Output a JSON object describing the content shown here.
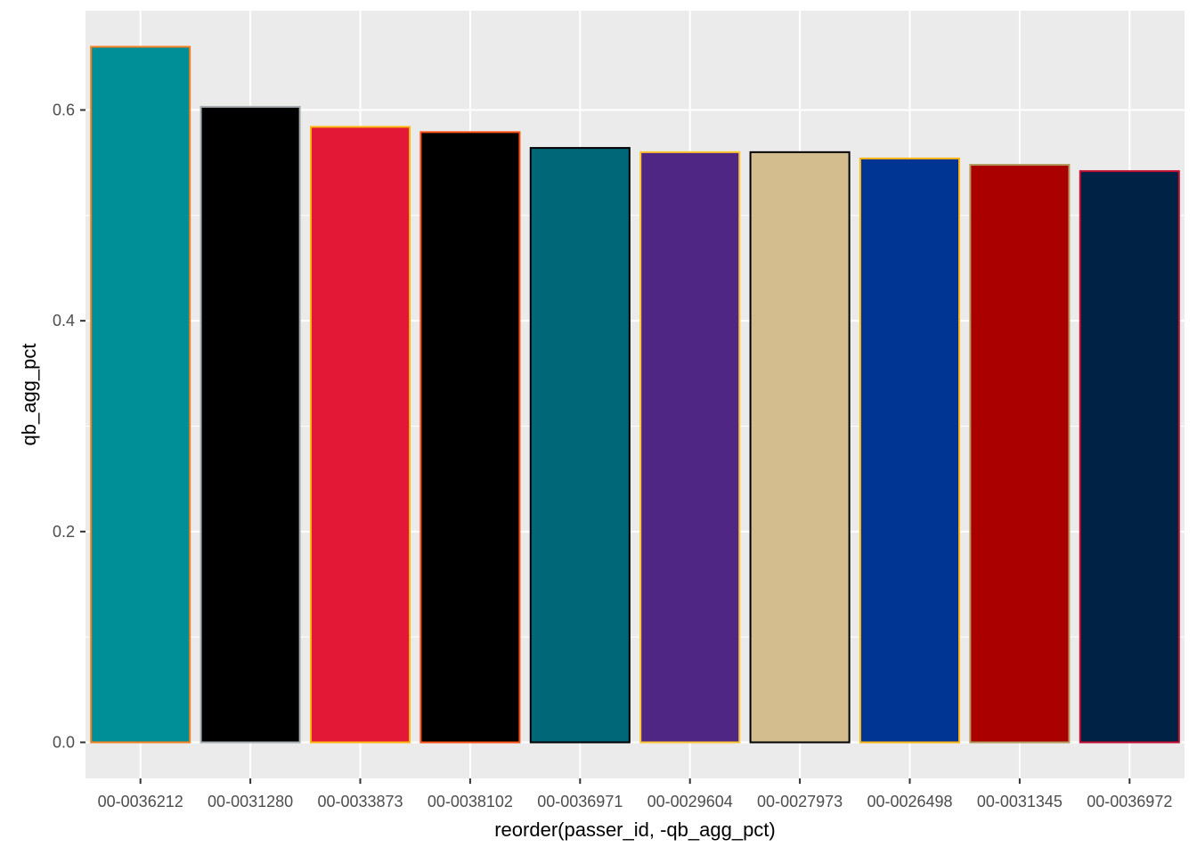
{
  "chart_data": {
    "type": "bar",
    "title": "",
    "xlabel": "reorder(passer_id, -qb_agg_pct)",
    "ylabel": "qb_agg_pct",
    "ylim": [
      -0.03,
      0.69
    ],
    "y_ticks": [
      0.0,
      0.2,
      0.4,
      0.6
    ],
    "y_tick_labels": [
      "0.0",
      "0.2",
      "0.4",
      "0.6"
    ],
    "y_minor_ticks": [
      0.1,
      0.3,
      0.5
    ],
    "grid": true,
    "legend": "none",
    "panel_background": "#ebebeb",
    "grid_color": "#ffffff",
    "categories": [
      "00-0036212",
      "00-0031280",
      "00-0033873",
      "00-0038102",
      "00-0036971",
      "00-0029604",
      "00-0027973",
      "00-0026498",
      "00-0031345",
      "00-0036972"
    ],
    "values": [
      0.66,
      0.603,
      0.584,
      0.579,
      0.564,
      0.56,
      0.56,
      0.554,
      0.548,
      0.542
    ],
    "fill_colors": [
      "#008e97",
      "#000000",
      "#e31837",
      "#000000",
      "#006778",
      "#4f2683",
      "#d3bc8d",
      "#003594",
      "#aa0000",
      "#002244"
    ],
    "outline_colors": [
      "#f58220",
      "#a5acaf",
      "#ffb612",
      "#fb4f14",
      "#000000",
      "#ffc62f",
      "#000000",
      "#ffb612",
      "#b3995d",
      "#c60c30"
    ]
  }
}
